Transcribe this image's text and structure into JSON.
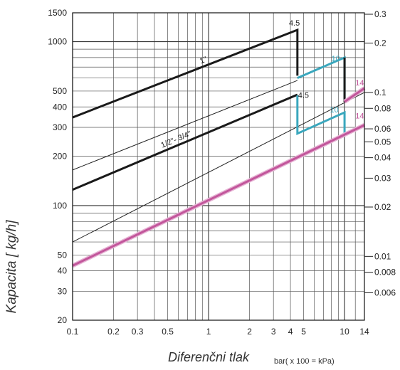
{
  "chart_data": {
    "type": "line",
    "title": "",
    "xlabel": "Diferenčni tlak",
    "xunit": "bar( x 100 = kPa)",
    "ylabel": "Kapacita [ kg/h]",
    "xscale": "log",
    "yscale": "log",
    "xlim": [
      0.1,
      14
    ],
    "ylim": [
      20,
      1500
    ],
    "grid": true,
    "x_ticks": [
      "0.1",
      "0.2",
      "0.3",
      "0.5",
      "1",
      "2",
      "3",
      "4",
      "5",
      "10",
      "14"
    ],
    "y_ticks": [
      "1500",
      "1000",
      "500",
      "400",
      "300",
      "200",
      "100",
      "50",
      "40",
      "30",
      "20"
    ],
    "y2_ticks": [
      "0.3",
      "0.2",
      "0.1",
      "0.08",
      "0.06",
      "0.05",
      "0.04",
      "0.03",
      "0.02",
      "0.01",
      "0.008",
      "0.006"
    ],
    "thin_lines": [
      {
        "x": [
          0.1,
          4.5
        ],
        "y": [
          165,
          580
        ]
      },
      {
        "x": [
          0.1,
          14
        ],
        "y": [
          60,
          490
        ]
      }
    ],
    "series": [
      {
        "name": "1\"",
        "color": "#1a1a1a",
        "x": [
          0.1,
          4.5,
          4.5
        ],
        "y": [
          345,
          1180,
          620
        ]
      },
      {
        "name": "1/2\"- 3/4\"",
        "color": "#1a1a1a",
        "x": [
          0.1,
          4.5
        ],
        "y": [
          125,
          475
        ]
      },
      {
        "color": "#3aa7bd",
        "x": [
          4.5,
          10,
          10
        ],
        "y": [
          600,
          800,
          440
        ]
      },
      {
        "color": "#3aa7bd",
        "x": [
          4.5,
          4.5,
          10,
          10
        ],
        "y": [
          470,
          275,
          370,
          265
        ]
      },
      {
        "color": "#1a1a1a",
        "x": [
          10,
          10
        ],
        "y": [
          800,
          430
        ]
      },
      {
        "color": "#c2569b",
        "x": [
          10,
          14
        ],
        "y": [
          430,
          520
        ]
      },
      {
        "color": "#c2569b",
        "x": [
          0.1,
          14
        ],
        "y": [
          43,
          310
        ]
      }
    ],
    "annotations": [
      {
        "text": "4.5",
        "x": 3.9,
        "y": 1250,
        "color": "#1a1a1a"
      },
      {
        "text": "4.5",
        "x": 4.55,
        "y": 455,
        "color": "#1a1a1a"
      },
      {
        "text": "10",
        "x": 8.0,
        "y": 760,
        "color": "#3aa7bd"
      },
      {
        "text": "10",
        "x": 7.8,
        "y": 370,
        "color": "#3aa7bd"
      },
      {
        "text": "14",
        "x": 12.0,
        "y": 540,
        "color": "#c2569b"
      },
      {
        "text": "14",
        "x": 12.0,
        "y": 340,
        "color": "#c2569b"
      }
    ]
  }
}
